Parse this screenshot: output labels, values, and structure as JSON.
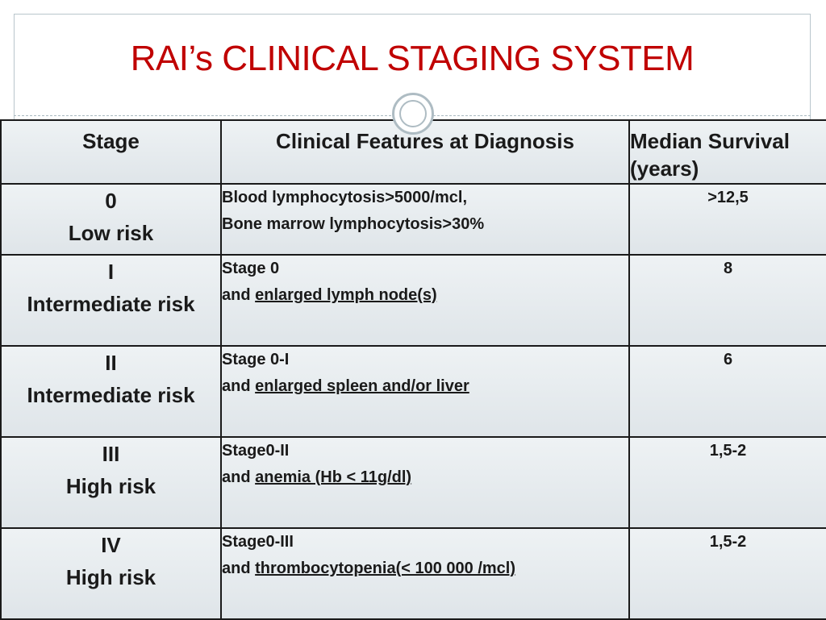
{
  "title": "RAI’s CLINICAL STAGING SYSTEM",
  "headers": {
    "stage": "Stage",
    "features": "Clinical Features at Diagnosis",
    "survival": "Median Survival (years)"
  },
  "rows": [
    {
      "stage": "0",
      "risk": "Low risk",
      "feature_line1": "Blood lymphocytosis>5000/mcl,",
      "feature_prefix": "",
      "feature_underlined": "Bone marrow lymphocytosis>30%",
      "survival": ">12,5"
    },
    {
      "stage": "I",
      "risk": "Intermediate risk",
      "feature_line1": "Stage 0",
      "feature_prefix": "and ",
      "feature_underlined": "enlarged lymph node(s)",
      "survival": "8"
    },
    {
      "stage": "II",
      "risk": "Intermediate risk",
      "feature_line1": "Stage 0-I",
      "feature_prefix": "and ",
      "feature_underlined": "enlarged spleen and/or liver",
      "survival": "6"
    },
    {
      "stage": "III",
      "risk": "High risk",
      "feature_line1": "Stage0-II",
      "feature_prefix": "and ",
      "feature_underlined": "anemia (Hb < 11g/dl)",
      "survival": "1,5-2"
    },
    {
      "stage": "IV",
      "risk": "High risk",
      "feature_line1": "Stage0-III",
      "feature_prefix": "and ",
      "feature_underlined": "thrombocytopenia(< 100 000 /mcl)",
      "survival": "1,5-2"
    }
  ]
}
